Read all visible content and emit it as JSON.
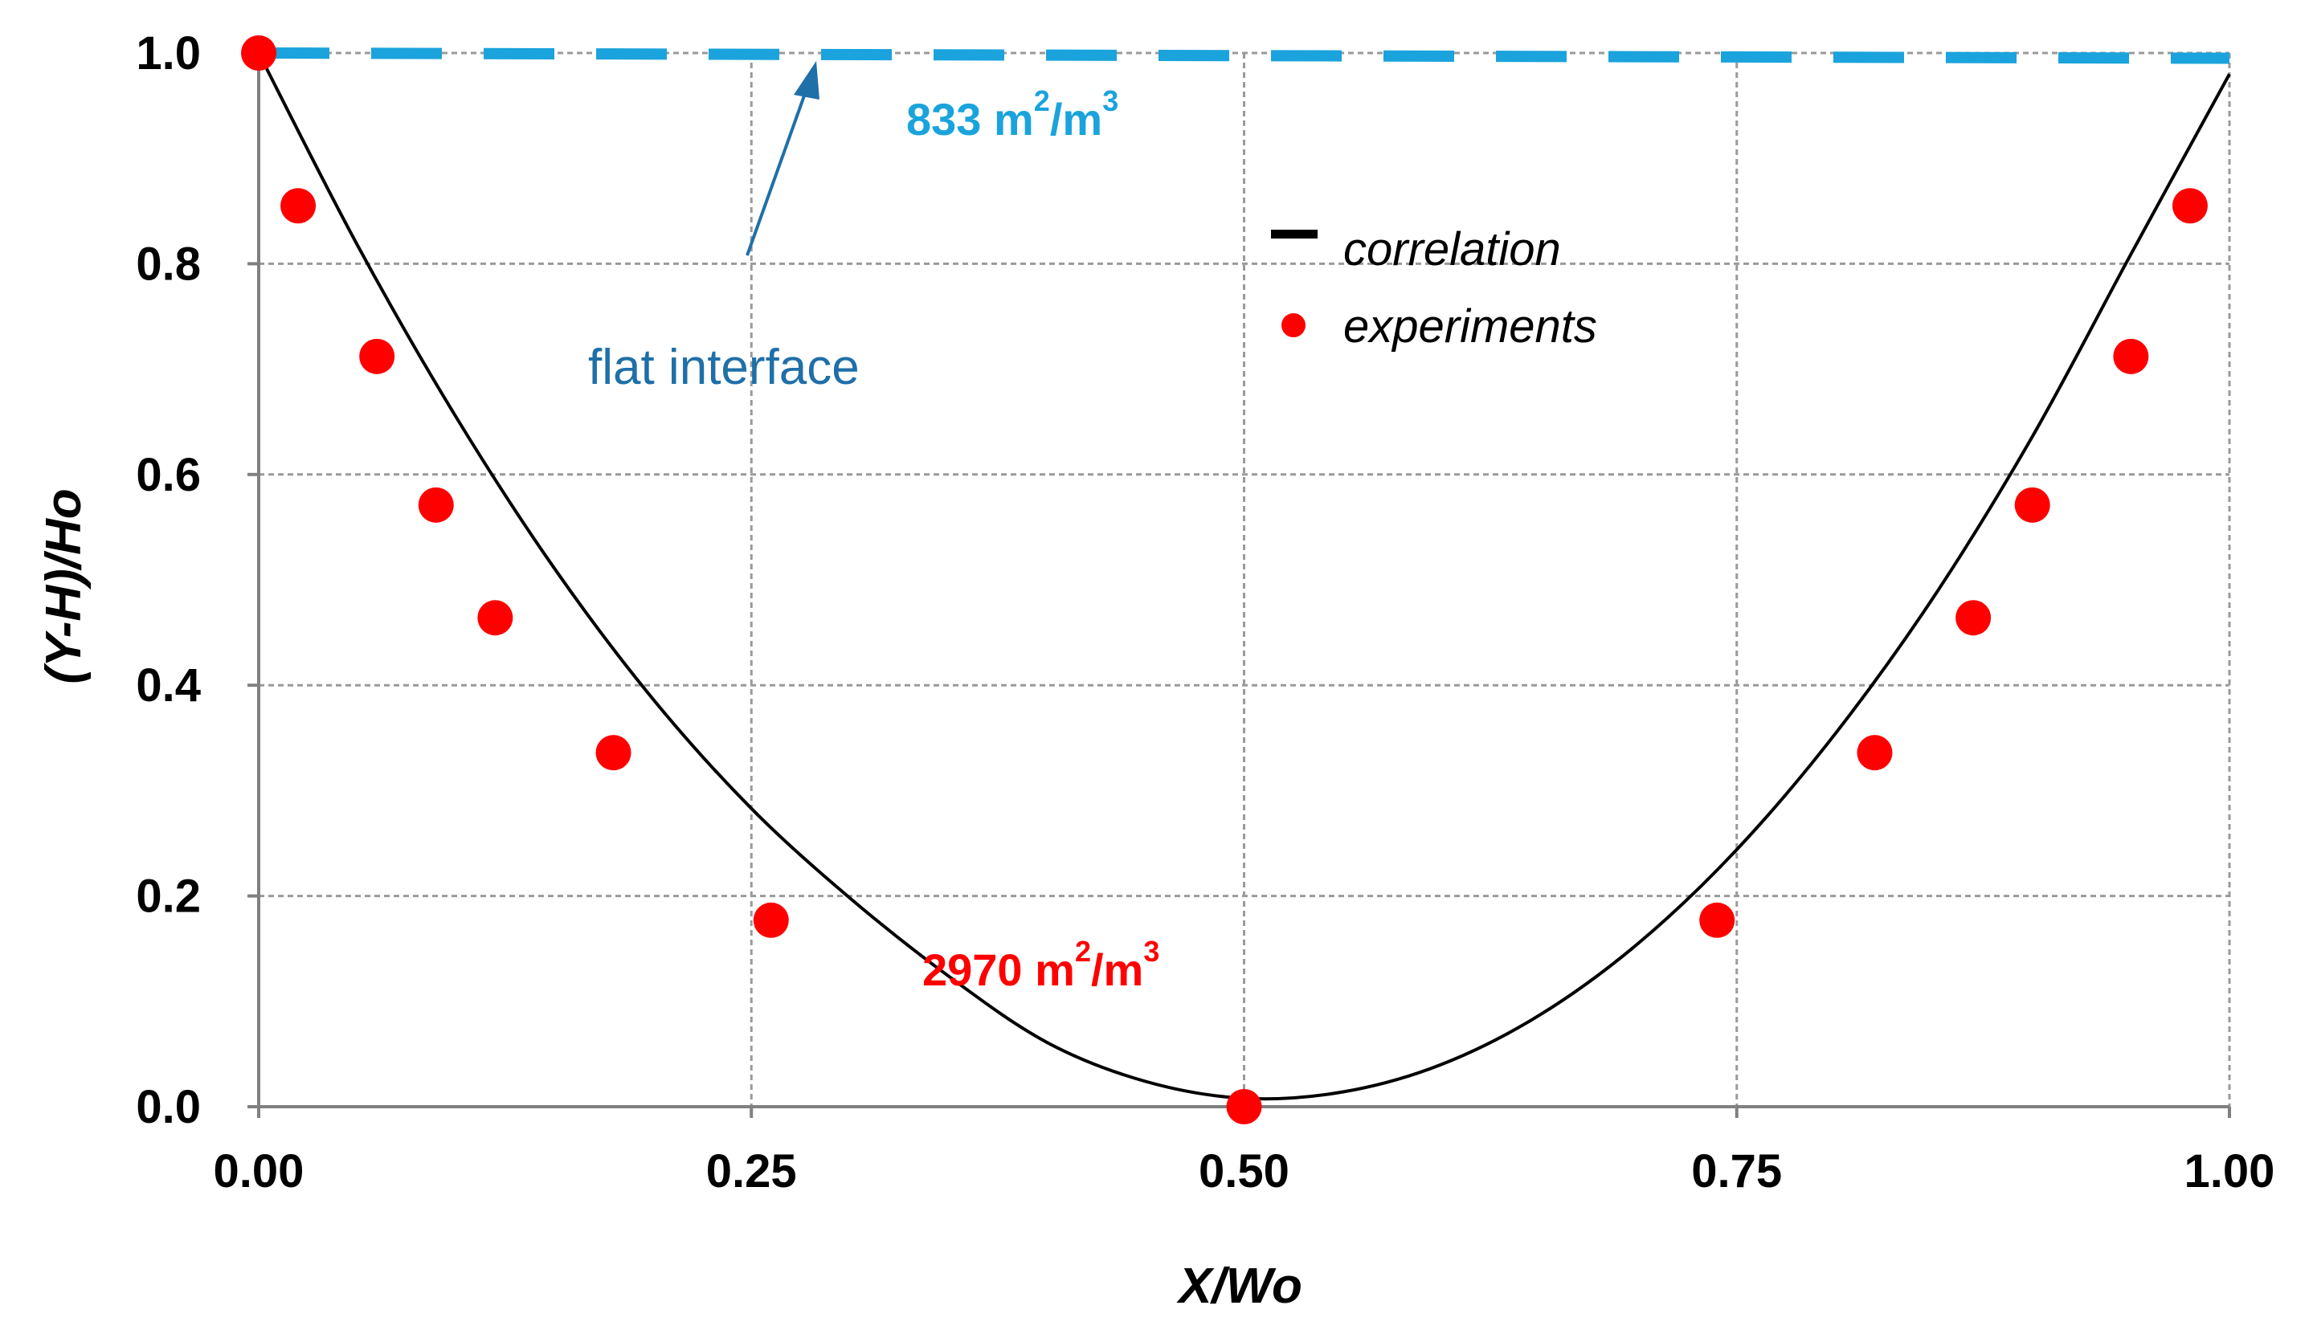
{
  "colors": {
    "experiments": "#ff0000",
    "correlation": "#000000",
    "flat_interface": "#1aa3dc",
    "flat_label": "#1f6fa8",
    "grid": "#9a9a9a",
    "axis": "#808080"
  },
  "chart_data": {
    "type": "scatter",
    "title": "",
    "xlabel": "X/Wo",
    "ylabel": "(Y-H)/Ho",
    "xlim": [
      0.0,
      1.0
    ],
    "ylim": [
      0.0,
      1.0
    ],
    "x_ticks": [
      "0.00",
      "0.25",
      "0.50",
      "0.75",
      "1.00"
    ],
    "y_ticks": [
      "0.0",
      "0.2",
      "0.4",
      "0.6",
      "0.8",
      "1.0"
    ],
    "x_tick_values": [
      0.0,
      0.25,
      0.5,
      0.75,
      1.0
    ],
    "y_tick_values": [
      0.0,
      0.2,
      0.4,
      0.6,
      0.8,
      1.0
    ],
    "grid": true,
    "legend": {
      "placement": "top-center",
      "entries": [
        "correlation",
        "experiments"
      ]
    },
    "series": [
      {
        "name": "experiments",
        "kind": "points",
        "x": [
          0.0,
          0.02,
          0.06,
          0.09,
          0.12,
          0.18,
          0.26,
          0.5,
          0.74,
          0.82,
          0.87,
          0.9,
          0.95,
          0.98
        ],
        "y": [
          1.0,
          0.855,
          0.712,
          0.571,
          0.464,
          0.336,
          0.177,
          0.0,
          0.177,
          0.336,
          0.464,
          0.571,
          0.712,
          0.855
        ]
      },
      {
        "name": "correlation",
        "kind": "line",
        "x": [
          0.0,
          0.05,
          0.1,
          0.15,
          0.2,
          0.25,
          0.3,
          0.35,
          0.4,
          0.45,
          0.5,
          0.55,
          0.6,
          0.65,
          0.7,
          0.75,
          0.8,
          0.85,
          0.9,
          0.95,
          1.0
        ],
        "y": [
          1.0,
          0.818,
          0.655,
          0.511,
          0.387,
          0.283,
          0.198,
          0.124,
          0.061,
          0.024,
          0.008,
          0.014,
          0.04,
          0.087,
          0.155,
          0.244,
          0.354,
          0.484,
          0.636,
          0.809,
          0.98
        ]
      },
      {
        "name": "flat interface",
        "kind": "dashed-line",
        "x": [
          0.0,
          1.0
        ],
        "y": [
          1.0,
          0.995
        ]
      }
    ],
    "annotations": {
      "top_value": "833 m",
      "top_sup1": "2",
      "top_unit": "/m",
      "top_sup2": "3",
      "bottom_value": "2970 m",
      "bottom_sup1": "2",
      "bottom_unit": "/m",
      "bottom_sup2": "3",
      "flat_interface_label": "flat interface"
    }
  }
}
